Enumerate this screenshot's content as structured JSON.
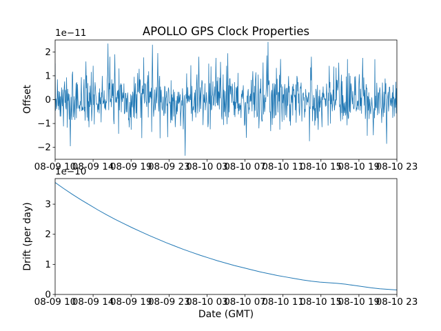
{
  "figure": {
    "background": "#ffffff",
    "axis_color": "#000000"
  },
  "chart_data": [
    {
      "type": "line",
      "title": "APOLLO GPS Clock Properties",
      "ylabel": "Offset",
      "offset_text": "1e−11",
      "scale_factor": 1e-11,
      "line_color": "#1f77b4",
      "ylim": [
        -2.5,
        2.5
      ],
      "y_ticks": [
        -2,
        -1,
        0,
        1,
        2
      ],
      "x_tick_labels": [
        "08-09 10",
        "08-09 14",
        "08-09 19",
        "08-09 23",
        "08-10 03",
        "08-10 07",
        "08-10 11",
        "08-10 15",
        "08-10 19",
        "08-10 23"
      ],
      "grid": false,
      "legend": "none",
      "series_kind": "noise",
      "noise": {
        "n_points": 900,
        "mean": 0,
        "std": 0.55,
        "seed": 7,
        "spike_probability": 0.02,
        "spike_scale": 2.0
      },
      "notable_spikes": [
        {
          "x": 0.045,
          "v": -1.95
        },
        {
          "x": 0.09,
          "v": 1.6
        },
        {
          "x": 0.155,
          "v": 2.35
        },
        {
          "x": 0.175,
          "v": 1.9
        },
        {
          "x": 0.285,
          "v": 2.3
        },
        {
          "x": 0.3,
          "v": 1.95
        },
        {
          "x": 0.38,
          "v": -2.35
        },
        {
          "x": 0.42,
          "v": 1.8
        },
        {
          "x": 0.47,
          "v": 1.75
        },
        {
          "x": 0.56,
          "v": -1.6
        },
        {
          "x": 0.62,
          "v": 1.85
        },
        {
          "x": 0.66,
          "v": 1.7
        },
        {
          "x": 0.75,
          "v": 1.8
        },
        {
          "x": 0.83,
          "v": 1.55
        },
        {
          "x": 0.9,
          "v": 1.75
        },
        {
          "x": 0.97,
          "v": -1.85
        }
      ]
    },
    {
      "type": "line",
      "xlabel": "Date (GMT)",
      "ylabel": "Drift (per day)",
      "offset_text": "1e−10",
      "scale_factor": 1e-10,
      "line_color": "#1f77b4",
      "ylim": [
        0,
        3.85
      ],
      "y_ticks": [
        0,
        1,
        2,
        3
      ],
      "x_tick_labels": [
        "08-09 10",
        "08-09 14",
        "08-09 19",
        "08-09 23",
        "08-10 03",
        "08-10 07",
        "08-10 11",
        "08-10 15",
        "08-10 19",
        "08-10 23"
      ],
      "grid": false,
      "legend": "none",
      "series_kind": "points",
      "points": {
        "x_start": 0,
        "x_end": 1,
        "y": [
          3.72,
          3.52,
          3.33,
          3.15,
          2.98,
          2.81,
          2.65,
          2.5,
          2.36,
          2.22,
          2.09,
          1.96,
          1.84,
          1.72,
          1.61,
          1.5,
          1.4,
          1.3,
          1.21,
          1.12,
          1.04,
          0.96,
          0.89,
          0.82,
          0.75,
          0.69,
          0.63,
          0.58,
          0.53,
          0.48,
          0.44,
          0.41,
          0.39,
          0.37,
          0.34,
          0.3,
          0.26,
          0.22,
          0.19,
          0.17,
          0.15
        ]
      }
    }
  ]
}
